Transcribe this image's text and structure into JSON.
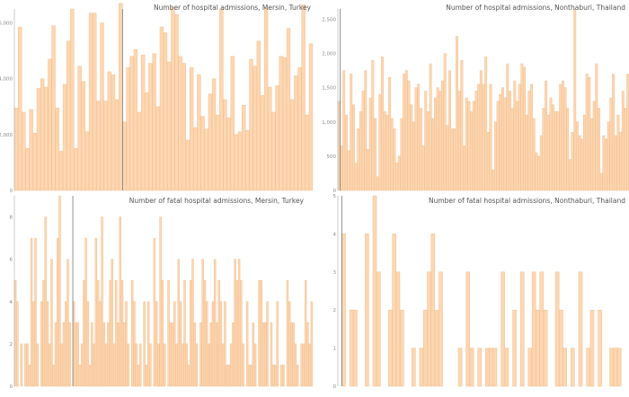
{
  "colors": {
    "bar_fill": "#fdd7b2",
    "bar_stroke": "#f3bf8f",
    "axis": "#aaaaaa",
    "divider": "#777777",
    "tick_text": "#8a8a8a",
    "title_text": "#555555"
  },
  "chart_data": [
    {
      "type": "bar",
      "title": "Number of hospital admissions, Mersin, Turkey",
      "xlabel": "",
      "ylabel": "",
      "ylim": [
        0,
        6500
      ],
      "yticks": [
        0,
        2000,
        4000,
        6000
      ],
      "ytick_labels": [
        "0",
        "2,000",
        "4,000",
        "6,000"
      ],
      "grid": false,
      "divider_after_index": 28,
      "values": [
        2950,
        5850,
        2800,
        1500,
        2900,
        2050,
        3650,
        4000,
        3700,
        4700,
        5900,
        2950,
        1400,
        3800,
        5350,
        6500,
        1500,
        4450,
        3900,
        2100,
        6350,
        6350,
        3200,
        6000,
        3200,
        4250,
        4150,
        3250,
        6700,
        2450,
        4400,
        4800,
        5050,
        2800,
        4850,
        3500,
        4550,
        4900,
        3000,
        5850,
        5650,
        4600,
        6550,
        6300,
        4800,
        4550,
        1800,
        4400,
        2250,
        4150,
        2650,
        2200,
        3450,
        4000,
        2700,
        6500,
        3250,
        2600,
        4800,
        2000,
        2100,
        3050,
        2150,
        4700,
        4450,
        5350,
        3400,
        6550,
        3700,
        2800,
        3750,
        4800,
        4750,
        5800,
        3250,
        4100,
        4400,
        6650,
        2700,
        5250
      ]
    },
    {
      "type": "bar",
      "title": "Number of hospital admissions, Nonthaburi, Thailand",
      "xlabel": "",
      "ylabel": "",
      "ylim": [
        0,
        2650
      ],
      "yticks": [
        0,
        500,
        1000,
        1500,
        2000,
        2500
      ],
      "ytick_labels": [
        "0",
        "500",
        "1,000",
        "1,500",
        "2,000",
        "2,500"
      ],
      "grid": false,
      "divider_after_index": 0,
      "values": [
        1300,
        650,
        1750,
        1100,
        580,
        1700,
        1250,
        400,
        900,
        1150,
        1450,
        1750,
        600,
        1350,
        1900,
        1050,
        200,
        1400,
        1950,
        1150,
        1100,
        1650,
        1050,
        900,
        400,
        500,
        1050,
        1700,
        1750,
        1600,
        1250,
        1000,
        1500,
        1550,
        1200,
        650,
        1450,
        1150,
        1850,
        1050,
        1350,
        1500,
        1450,
        1600,
        2000,
        950,
        1750,
        900,
        900,
        2250,
        1450,
        1900,
        650,
        1350,
        1300,
        1150,
        1300,
        1450,
        1550,
        1750,
        1550,
        1950,
        850,
        1550,
        300,
        1000,
        1300,
        1400,
        1500,
        1350,
        1850,
        1450,
        1200,
        1600,
        1300,
        1550,
        1850,
        1800,
        1100,
        1450,
        1550,
        1050,
        550,
        500,
        800,
        1200,
        1600,
        1100,
        1350,
        1250,
        1150,
        1150,
        1550,
        1600,
        1500,
        1200,
        450,
        850,
        2650,
        1000,
        800,
        750,
        1100,
        1700,
        1650,
        1050,
        1300,
        1850,
        1200,
        250,
        800,
        750,
        1000,
        1350,
        1700,
        800,
        1100,
        850,
        1450,
        1200,
        1700
      ]
    },
    {
      "type": "bar",
      "title": "Number of fatal hospital admissions, Mersin, Turkey",
      "xlabel": "",
      "ylabel": "",
      "ylim": [
        0,
        9
      ],
      "yticks": [
        0,
        2,
        4,
        6,
        8
      ],
      "ytick_labels": [
        "0",
        "2",
        "4",
        "6",
        "8"
      ],
      "grid": false,
      "divider_after_index": 28,
      "values": [
        5,
        4,
        0,
        2,
        0,
        2,
        2,
        1,
        7,
        4,
        7,
        2,
        0,
        4,
        5,
        8,
        4,
        2,
        6,
        1,
        3,
        7,
        9,
        2,
        3,
        4,
        6,
        3,
        0,
        4,
        3,
        3,
        1,
        2,
        5,
        7,
        4,
        1,
        3,
        2,
        7,
        5,
        4,
        8,
        3,
        2,
        3,
        5,
        6,
        2,
        5,
        3,
        8,
        5,
        3,
        4,
        2,
        0,
        5,
        4,
        2,
        1,
        2,
        0,
        4,
        1,
        4,
        2,
        0,
        7,
        4,
        2,
        8,
        5,
        2,
        0,
        5,
        3,
        3,
        4,
        2,
        6,
        4,
        2,
        5,
        2,
        1,
        5,
        6,
        3,
        2,
        0,
        3,
        6,
        5,
        4,
        2,
        3,
        4,
        6,
        3,
        5,
        4,
        2,
        4,
        1,
        1,
        2,
        3,
        6,
        5,
        6,
        5,
        2,
        0,
        4,
        1,
        1,
        3,
        2,
        0,
        5,
        5,
        3,
        3,
        4,
        0,
        3,
        1,
        1,
        4,
        0,
        1,
        1,
        0,
        5,
        4,
        3,
        3,
        2,
        1,
        0,
        2,
        2,
        5,
        3,
        2,
        4
      ]
    },
    {
      "type": "bar",
      "title": "Number of fatal hospital admissions, Nonthaburi, Thailand",
      "xlabel": "",
      "ylabel": "",
      "ylim": [
        0,
        5
      ],
      "yticks": [
        0,
        1,
        2,
        3,
        4,
        5
      ],
      "ytick_labels": [
        "0",
        "1",
        "2",
        "3",
        "4",
        "5"
      ],
      "grid": false,
      "divider_after_index": 0,
      "values": [
        0,
        4,
        0,
        2,
        2,
        0,
        0,
        4,
        0,
        5,
        3,
        0,
        0,
        2,
        4,
        3,
        2,
        0,
        0,
        1,
        0,
        1,
        2,
        3,
        4,
        2,
        3,
        0,
        0,
        0,
        0,
        1,
        0,
        3,
        1,
        0,
        1,
        0,
        1,
        1,
        1,
        0,
        3,
        1,
        0,
        2,
        0,
        3,
        0,
        1,
        3,
        2,
        3,
        2,
        0,
        0,
        3,
        2,
        1,
        0,
        1,
        0,
        3,
        0,
        1,
        2,
        0,
        2,
        0,
        0,
        1,
        1,
        1,
        0,
        0
      ]
    }
  ]
}
